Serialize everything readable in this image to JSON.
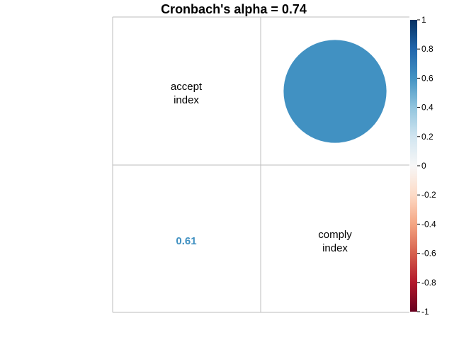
{
  "chart_data": {
    "type": "heatmap",
    "title": "Cronbach's alpha =  0.74",
    "variables": [
      {
        "line1": "accept",
        "line2": "index"
      },
      {
        "line1": "comply",
        "line2": "index"
      }
    ],
    "correlation": 0.61,
    "correlation_label": "0.61",
    "upper_style": "circle",
    "lower_style": "number",
    "colorbar": {
      "min": -1,
      "max": 1,
      "tick_labels": [
        "1",
        "0.8",
        "0.6",
        "0.4",
        "0.2",
        "0",
        "-0.2",
        "-0.4",
        "-0.6",
        "-0.8",
        "-1"
      ],
      "colors": [
        "#053061",
        "#2166ac",
        "#4393c3",
        "#92c5de",
        "#d1e5f0",
        "#f7f7f7",
        "#fddbc7",
        "#f4a582",
        "#d6604d",
        "#b2182b",
        "#67001f"
      ]
    },
    "grid": true,
    "legend_placement": "right"
  }
}
